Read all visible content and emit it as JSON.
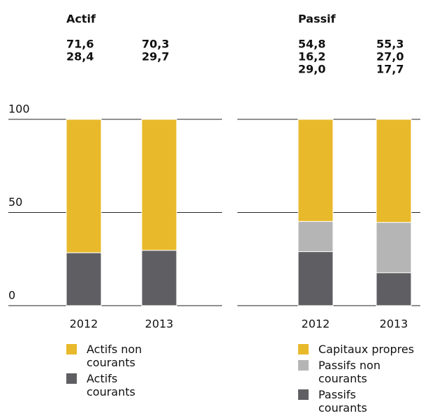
{
  "chart_data": [
    {
      "type": "stacked_bar",
      "title": "Actif",
      "categories": [
        "2012",
        "2013"
      ],
      "series": [
        {
          "name": "Actifs non courants",
          "color": "#e8b92b",
          "values": [
            71.6,
            70.3
          ],
          "value_labels": [
            "71,6",
            "70,3"
          ]
        },
        {
          "name": "Actifs courants",
          "color": "#5f5f63",
          "values": [
            28.4,
            29.7
          ],
          "value_labels": [
            "28,4",
            "29,7"
          ]
        }
      ],
      "ylim": [
        0,
        100
      ],
      "yticks": [
        0,
        50,
        100
      ],
      "grid": true,
      "ytick_labels": true
    },
    {
      "type": "stacked_bar",
      "title": "Passif",
      "categories": [
        "2012",
        "2013"
      ],
      "series": [
        {
          "name": "Capitaux propres",
          "color": "#e8b92b",
          "values": [
            54.8,
            55.3
          ],
          "value_labels": [
            "54,8",
            "55,3"
          ]
        },
        {
          "name": "Passifs non courants",
          "color": "#b5b5b5",
          "values": [
            16.2,
            27.0
          ],
          "value_labels": [
            "16,2",
            "27,0"
          ]
        },
        {
          "name": "Passifs courants",
          "color": "#5f5f63",
          "values": [
            29.0,
            17.7
          ],
          "value_labels": [
            "29,0",
            "17,7"
          ]
        }
      ],
      "ylim": [
        0,
        100
      ],
      "yticks": [
        0,
        50,
        100
      ],
      "grid": true,
      "ytick_labels": false
    }
  ]
}
